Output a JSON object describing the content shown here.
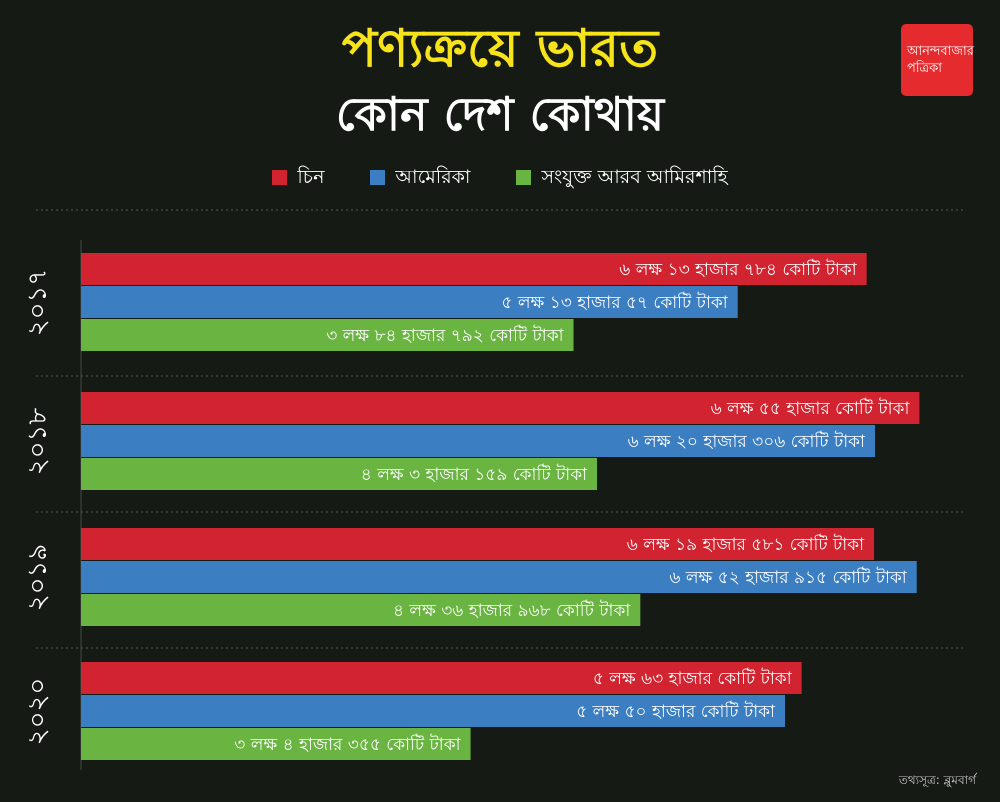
{
  "title": "পণ্যক্রয়ে ভারত",
  "subtitle": "কোন দেশ কোথায়",
  "logo": {
    "line1": "আনন্দবাজার",
    "line2": "পত্রিকা"
  },
  "source": "তথ্যসূত্র: ব্লুমবার্গ",
  "colors": {
    "background": "#151a15",
    "title": "#f7e31a",
    "china": "#d12330",
    "usa": "#3b7ec2",
    "uae": "#6ab542"
  },
  "chart_data": {
    "type": "bar",
    "orientation": "horizontal",
    "unit": "কোটি টাকা",
    "legend_placement": "top",
    "series": [
      {
        "name": "চিন",
        "color": "#d12330"
      },
      {
        "name": "আমেরিকা",
        "color": "#3b7ec2"
      },
      {
        "name": "সংযুক্ত আরব আমিরশাহি",
        "color": "#6ab542"
      }
    ],
    "groups": [
      {
        "year_label": "২০১৭",
        "values": [
          613784,
          513057,
          384792
        ],
        "labels": [
          "৬ লক্ষ ১৩ হাজার ৭৮৪ কোটি টাকা",
          "৫ লক্ষ ১৩ হাজার ৫৭ কোটি টাকা",
          "৩ লক্ষ ৮৪ হাজার ৭৯২ কোটি টাকা"
        ]
      },
      {
        "year_label": "২০১৮",
        "values": [
          655000,
          620306,
          403159
        ],
        "labels": [
          "৬ লক্ষ ৫৫ হাজার কোটি টাকা",
          "৬ লক্ষ ২০ হাজার ৩০৬ কোটি টাকা",
          "৪ লক্ষ ৩ হাজার ১৫৯ কোটি টাকা"
        ]
      },
      {
        "year_label": "২০১৯",
        "values": [
          619581,
          652915,
          436968
        ],
        "labels": [
          "৬ লক্ষ ১৯ হাজার ৫৮১ কোটি টাকা",
          "৬ লক্ষ ৫২ হাজার ৯১৫ কোটি টাকা",
          "৪ লক্ষ ৩৬ হাজার ৯৬৮ কোটি টাকা"
        ]
      },
      {
        "year_label": "২০২০",
        "values": [
          563000,
          550000,
          304355
        ],
        "labels": [
          "৫ লক্ষ ৬৩ হাজার কোটি টাকা",
          "৫ লক্ষ ৫০ হাজার কোটি টাকা",
          "৩ লক্ষ ৪ হাজার ৩৫৫ কোটি টাকা"
        ]
      }
    ]
  }
}
